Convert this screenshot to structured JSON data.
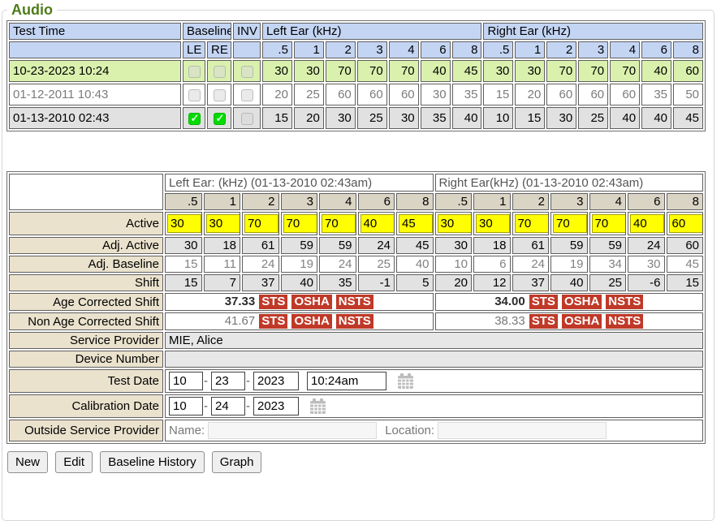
{
  "title": "Audio",
  "colors": {
    "accent_green": "#4d7c1a",
    "header_blue": "#c4d5f4",
    "latest_row_green": "#daf1ae",
    "baseline_row_gray": "#e1e1e1",
    "checked_green": "#00db00",
    "label_beige": "#eae2cd",
    "freq_header_tan": "#dad4c5",
    "badge_red": "#c03928",
    "active_yellow": "#ffff00"
  },
  "history_table": {
    "col_headers": {
      "test_time": "Test Time",
      "baseline": "Baseline",
      "le": "LE",
      "re": "RE",
      "inv": "INV",
      "left_ear": "Left Ear (kHz)",
      "right_ear": "Right Ear (kHz)"
    },
    "frequencies": [
      ".5",
      "1",
      "2",
      "3",
      "4",
      "6",
      "8"
    ],
    "rows": [
      {
        "test_time": "10-23-2023 10:24",
        "le_checked": false,
        "re_checked": false,
        "inv_checked": false,
        "left": [
          "30",
          "30",
          "70",
          "70",
          "70",
          "40",
          "45"
        ],
        "right": [
          "30",
          "30",
          "70",
          "70",
          "70",
          "40",
          "60"
        ]
      },
      {
        "test_time": "01-12-2011 10:43",
        "le_checked": false,
        "re_checked": false,
        "inv_checked": false,
        "left": [
          "20",
          "25",
          "60",
          "60",
          "60",
          "30",
          "35"
        ],
        "right": [
          "15",
          "20",
          "60",
          "60",
          "60",
          "35",
          "50"
        ]
      },
      {
        "test_time": "01-13-2010 02:43",
        "le_checked": true,
        "re_checked": true,
        "inv_checked": false,
        "left": [
          "15",
          "20",
          "30",
          "25",
          "30",
          "35",
          "40"
        ],
        "right": [
          "10",
          "15",
          "30",
          "25",
          "40",
          "40",
          "45"
        ]
      }
    ]
  },
  "detail_table": {
    "left_header": "Left Ear: (kHz) (01-13-2010 02:43am)",
    "right_header": "Right Ear(kHz) (01-13-2010 02:43am)",
    "frequencies": [
      ".5",
      "1",
      "2",
      "3",
      "4",
      "6",
      "8"
    ],
    "active": {
      "label": "Active",
      "left": [
        "30",
        "30",
        "70",
        "70",
        "70",
        "40",
        "45"
      ],
      "right": [
        "30",
        "30",
        "70",
        "70",
        "70",
        "40",
        "60"
      ]
    },
    "adj_active": {
      "label": "Adj. Active",
      "left": [
        "30",
        "18",
        "61",
        "59",
        "59",
        "24",
        "45"
      ],
      "right": [
        "30",
        "18",
        "61",
        "59",
        "59",
        "24",
        "60"
      ]
    },
    "adj_baseline": {
      "label": "Adj. Baseline",
      "left": [
        "15",
        "11",
        "24",
        "19",
        "24",
        "25",
        "40"
      ],
      "right": [
        "10",
        "6",
        "24",
        "19",
        "34",
        "30",
        "45"
      ]
    },
    "shift": {
      "label": "Shift",
      "left": [
        "15",
        "7",
        "37",
        "40",
        "35",
        "-1",
        "5"
      ],
      "right": [
        "20",
        "12",
        "37",
        "40",
        "25",
        "-6",
        "15"
      ]
    },
    "age_corrected": {
      "label": "Age Corrected Shift",
      "left_value": "37.33",
      "right_value": "34.00",
      "badges": [
        "STS",
        "OSHA",
        "NSTS"
      ]
    },
    "non_age_corrected": {
      "label": "Non Age Corrected Shift",
      "left_value": "41.67",
      "right_value": "38.33",
      "badges": [
        "STS",
        "OSHA",
        "NSTS"
      ]
    },
    "service_provider": {
      "label": "Service Provider",
      "value": "MIE, Alice"
    },
    "device_number": {
      "label": "Device Number",
      "value": ""
    },
    "test_date": {
      "label": "Test Date",
      "month": "10",
      "day": "23",
      "year": "2023",
      "time": "10:24am"
    },
    "calibration_date": {
      "label": "Calibration Date",
      "month": "10",
      "day": "24",
      "year": "2023"
    },
    "outside_provider": {
      "label": "Outside Service Provider",
      "name_label": "Name:",
      "name_value": "",
      "location_label": "Location:",
      "location_value": ""
    }
  },
  "buttons": [
    "New",
    "Edit",
    "Baseline History",
    "Graph"
  ]
}
